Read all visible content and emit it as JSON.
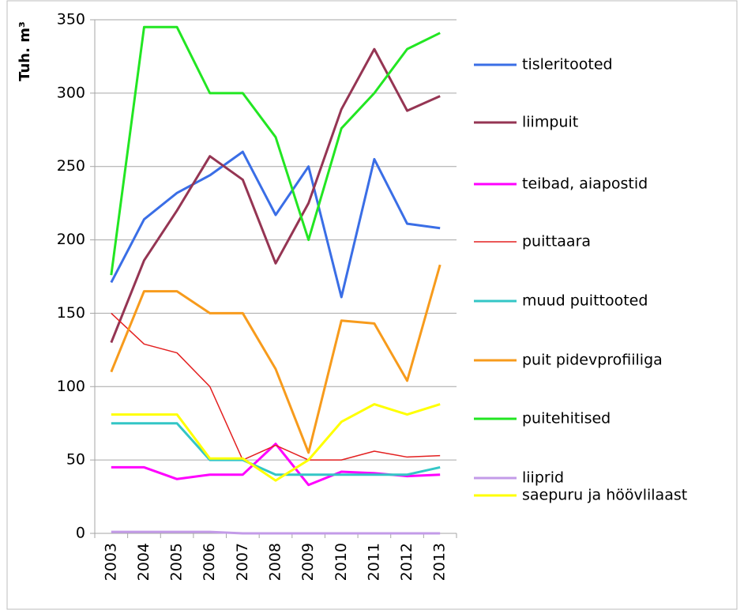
{
  "chart_data": {
    "type": "line",
    "y_label": "Tuh. m³",
    "categories": [
      "2003",
      "2004",
      "2005",
      "2006",
      "2007",
      "2008",
      "2009",
      "2010",
      "2011",
      "2012",
      "2013"
    ],
    "series": [
      {
        "name": "tisleritooted",
        "color": "#3a6ee6",
        "values": [
          171,
          214,
          232,
          244,
          260,
          217,
          250,
          161,
          255,
          211,
          208
        ]
      },
      {
        "name": "liimpuit",
        "color": "#953553",
        "values": [
          130,
          186,
          220,
          257,
          241,
          184,
          225,
          289,
          330,
          288,
          298
        ]
      },
      {
        "name": "teibad, aiapostid",
        "color": "#ff00ff",
        "values": [
          45,
          45,
          37,
          40,
          40,
          61,
          33,
          42,
          41,
          39,
          40
        ]
      },
      {
        "name": "puittaara",
        "color": "#e32020",
        "values": [
          150,
          129,
          123,
          100,
          50,
          60,
          50,
          50,
          56,
          52,
          53
        ]
      },
      {
        "name": "muud puittooted",
        "color": "#33c6c6",
        "values": [
          75,
          75,
          75,
          50,
          50,
          40,
          40,
          40,
          40,
          40,
          45
        ]
      },
      {
        "name": "puit pidevprofiiliga",
        "color": "#f79b1c",
        "values": [
          110,
          165,
          165,
          150,
          150,
          112,
          55,
          145,
          143,
          104,
          183
        ]
      },
      {
        "name": "puitehitised",
        "color": "#22e622",
        "values": [
          176,
          345,
          345,
          300,
          300,
          270,
          200,
          276,
          300,
          330,
          341
        ]
      },
      {
        "name": "liiprid",
        "color": "#c39be8",
        "values": [
          1,
          1,
          1,
          1,
          0,
          0,
          0,
          0,
          0,
          0,
          0
        ]
      },
      {
        "name": "saepuru ja höövlilaast",
        "color": "#ffff00",
        "values": [
          81,
          81,
          81,
          51,
          51,
          36,
          50,
          76,
          88,
          81,
          88
        ]
      }
    ],
    "ylim": [
      0,
      350
    ],
    "yticks": [
      0,
      50,
      100,
      150,
      200,
      250,
      300,
      350
    ],
    "grid": true
  }
}
